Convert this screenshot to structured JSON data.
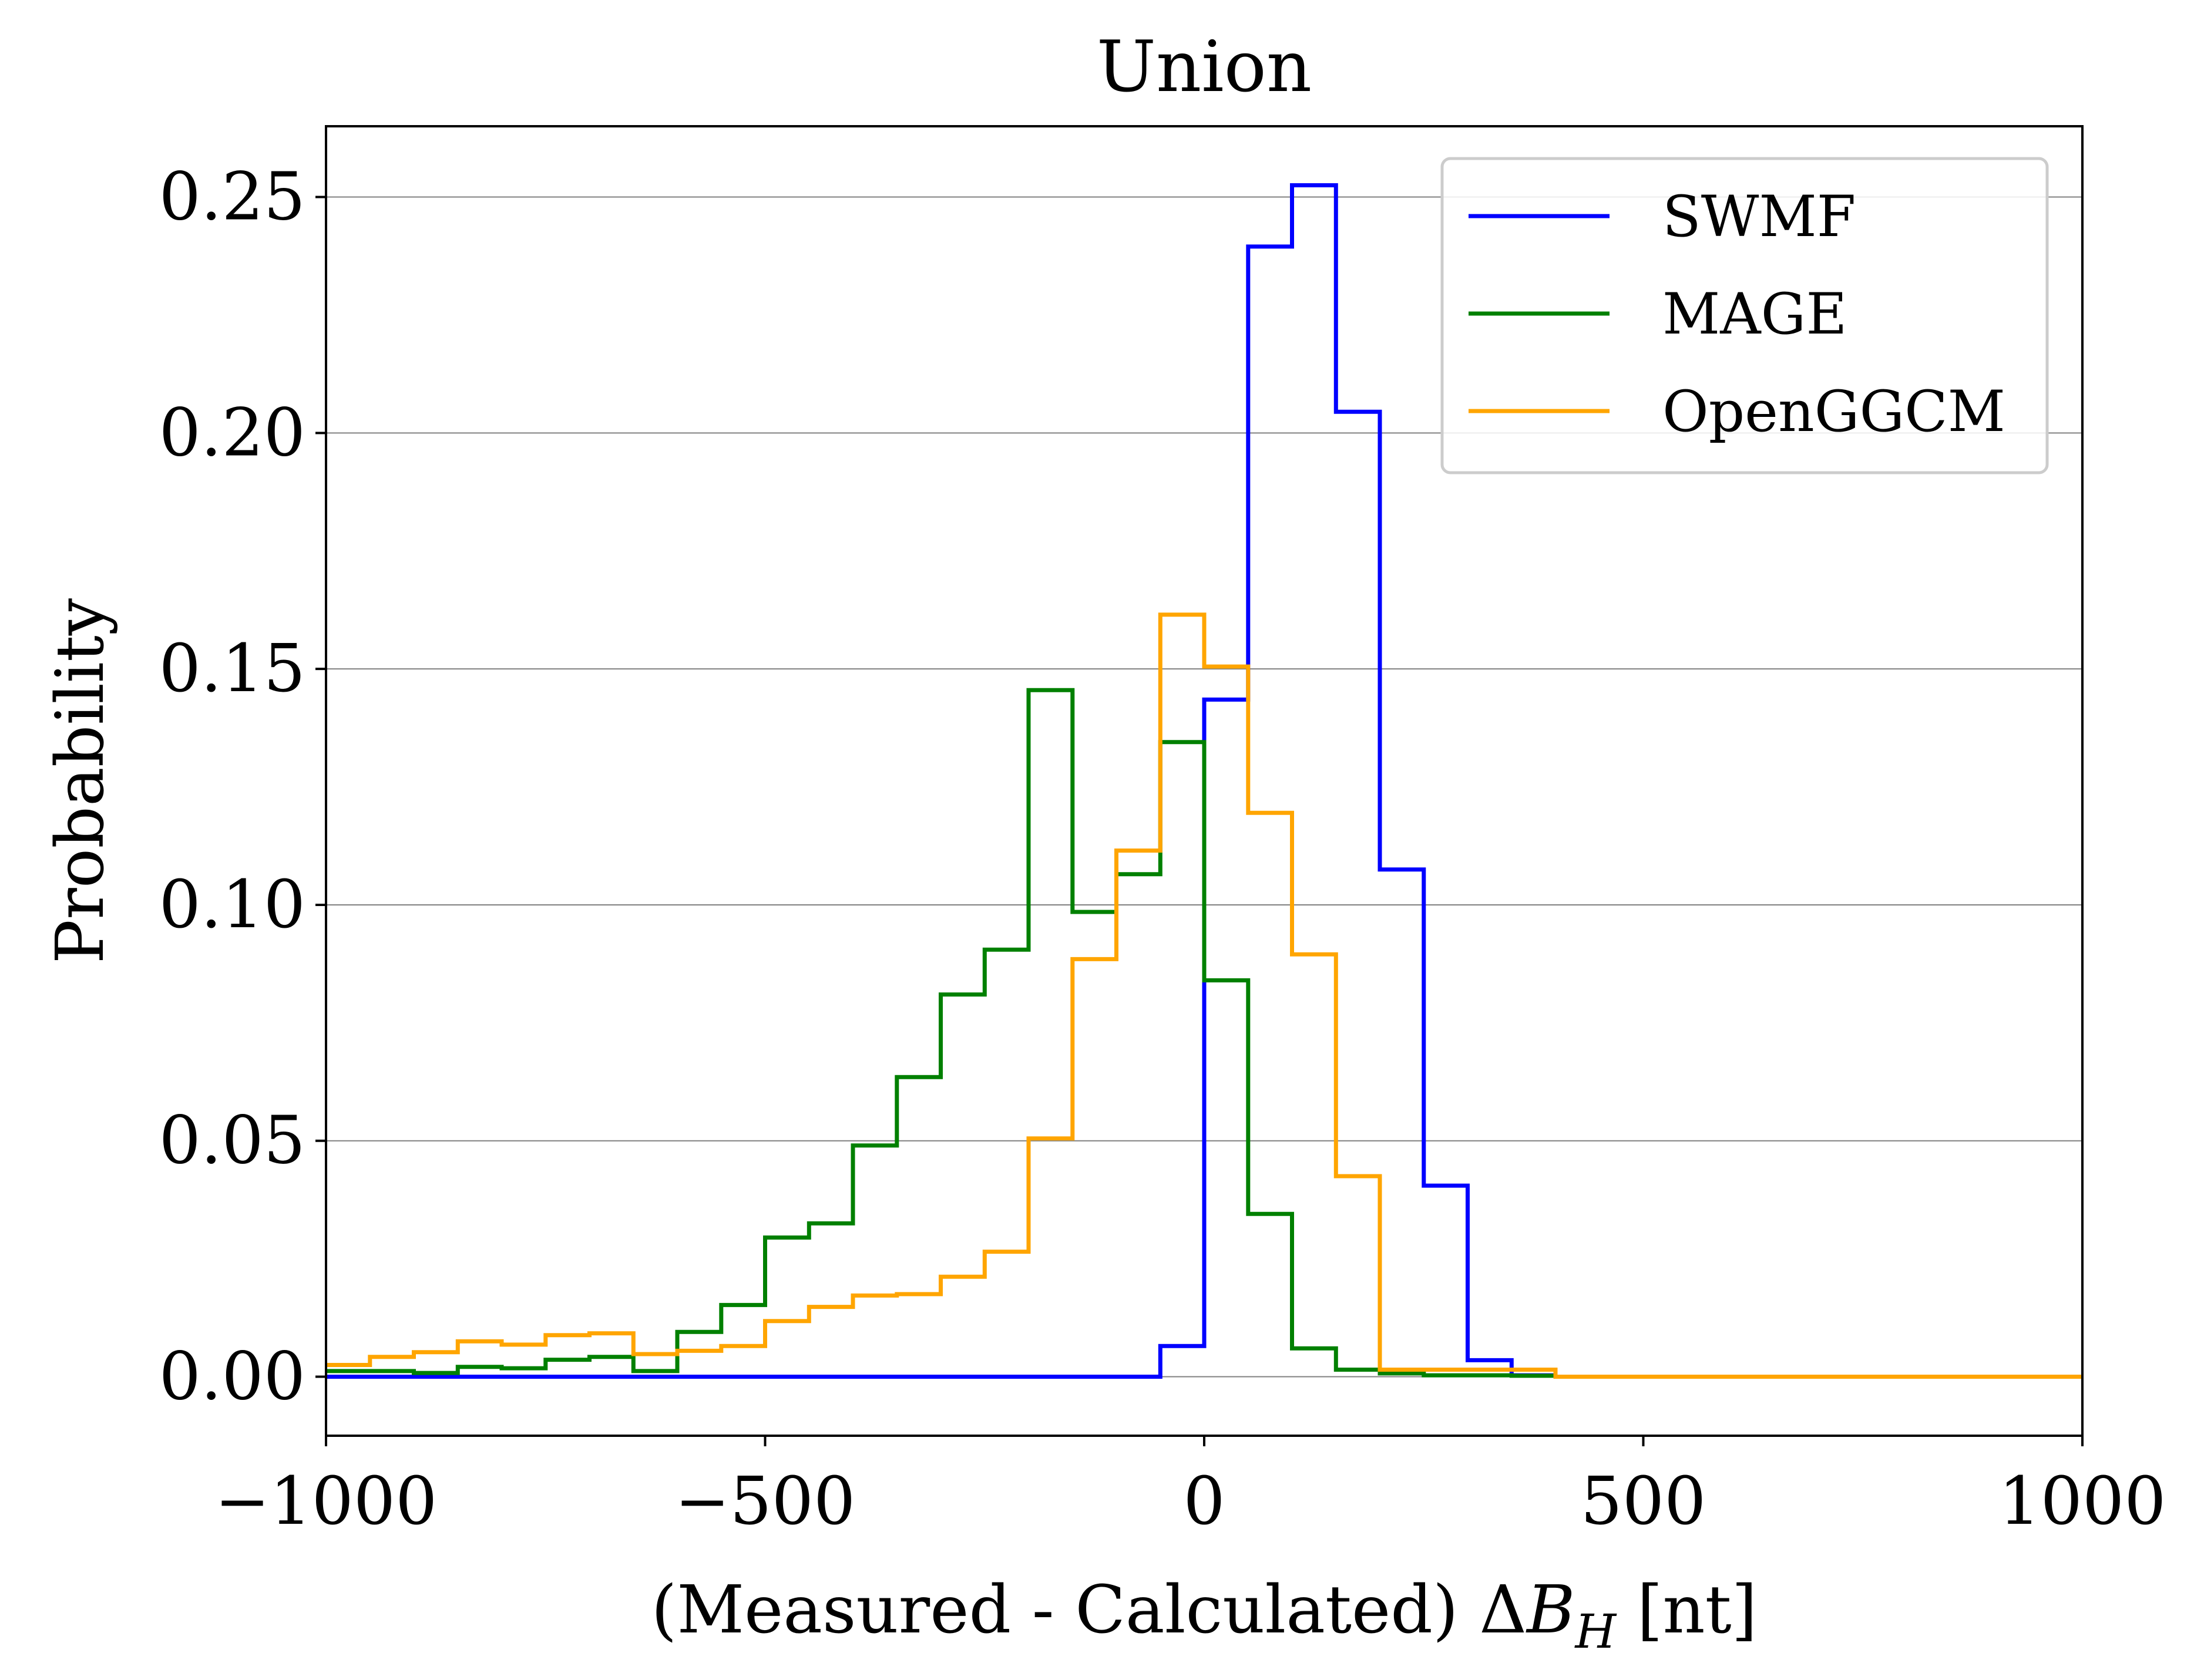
{
  "chart_data": {
    "type": "line",
    "drawstyle": "steps-post",
    "title": "Union",
    "xlabel_parts": [
      "(Measured - Calculated) Δ",
      "B",
      "H",
      " [nt]"
    ],
    "ylabel": "Probability",
    "xlim": [
      -1000,
      1000
    ],
    "ylim": [
      -0.0125,
      0.265
    ],
    "xticks": [
      -1000,
      -500,
      0,
      500,
      1000
    ],
    "xtick_labels": [
      "−1000",
      "−500",
      "0",
      "500",
      "1000"
    ],
    "yticks": [
      0.0,
      0.05,
      0.1,
      0.15,
      0.2,
      0.25
    ],
    "ytick_labels": [
      "0.00",
      "0.05",
      "0.10",
      "0.15",
      "0.20",
      "0.25"
    ],
    "grid": "y",
    "legend_position": "top-right",
    "series": [
      {
        "name": "SWMF",
        "color": "#0000ff",
        "x": [
          -1000,
          -50,
          0,
          50,
          100,
          150,
          200,
          250,
          300,
          350,
          400,
          1000
        ],
        "y": [
          0.0,
          0.0065,
          0.1435,
          0.2395,
          0.2525,
          0.2045,
          0.1075,
          0.0405,
          0.0035,
          0.0003,
          0.0,
          0.0
        ]
      },
      {
        "name": "MAGE",
        "color": "#008000",
        "x": [
          -1000,
          -950,
          -900,
          -850,
          -800,
          -750,
          -700,
          -650,
          -600,
          -550,
          -500,
          -450,
          -400,
          -350,
          -300,
          -250,
          -200,
          -150,
          -100,
          -50,
          0,
          50,
          100,
          150,
          200,
          250,
          300,
          350,
          400
        ],
        "y": [
          0.0012,
          0.0012,
          0.0008,
          0.0021,
          0.0018,
          0.0036,
          0.0042,
          0.0012,
          0.0095,
          0.0152,
          0.0295,
          0.0325,
          0.049,
          0.0635,
          0.081,
          0.0905,
          0.1455,
          0.0985,
          0.1065,
          0.1345,
          0.084,
          0.0345,
          0.006,
          0.0015,
          0.0007,
          0.0003,
          0.0003,
          0.0002,
          0.0
        ]
      },
      {
        "name": "OpenGGCM",
        "color": "#ffa500",
        "x": [
          -1000,
          -950,
          -900,
          -850,
          -800,
          -750,
          -700,
          -650,
          -600,
          -550,
          -500,
          -450,
          -400,
          -350,
          -300,
          -250,
          -200,
          -150,
          -100,
          -50,
          0,
          50,
          100,
          150,
          200,
          250,
          300,
          350,
          400,
          1000
        ],
        "y": [
          0.0025,
          0.0042,
          0.0052,
          0.0075,
          0.0068,
          0.0088,
          0.0092,
          0.0048,
          0.0055,
          0.0065,
          0.0118,
          0.0148,
          0.0172,
          0.0175,
          0.0212,
          0.0265,
          0.0505,
          0.0885,
          0.1115,
          0.1615,
          0.1505,
          0.1195,
          0.0895,
          0.0425,
          0.0015,
          0.0015,
          0.0015,
          0.0015,
          0.0,
          0.0
        ]
      }
    ]
  }
}
